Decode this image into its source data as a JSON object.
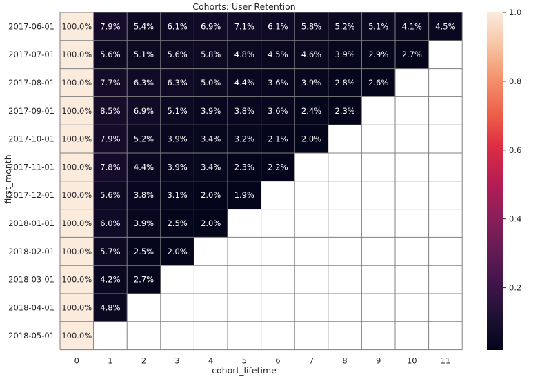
{
  "chart_data": {
    "type": "heatmap",
    "title": "Cohorts: User Retention",
    "xlabel": "cohort_lifetime",
    "ylabel": "first_month",
    "columns": [
      "0",
      "1",
      "2",
      "3",
      "4",
      "5",
      "6",
      "7",
      "8",
      "9",
      "10",
      "11"
    ],
    "rows": [
      "2017-06-01",
      "2017-07-01",
      "2017-08-01",
      "2017-09-01",
      "2017-10-01",
      "2017-11-01",
      "2017-12-01",
      "2018-01-01",
      "2018-02-01",
      "2018-03-01",
      "2018-04-01",
      "2018-05-01"
    ],
    "values": [
      [
        1.0,
        0.079,
        0.054,
        0.061,
        0.069,
        0.071,
        0.061,
        0.058,
        0.052,
        0.051,
        0.041,
        0.045
      ],
      [
        1.0,
        0.056,
        0.051,
        0.056,
        0.058,
        0.048,
        0.045,
        0.046,
        0.039,
        0.029,
        0.027,
        null
      ],
      [
        1.0,
        0.077,
        0.063,
        0.063,
        0.05,
        0.044,
        0.036,
        0.039,
        0.028,
        0.026,
        null,
        null
      ],
      [
        1.0,
        0.085,
        0.069,
        0.051,
        0.039,
        0.038,
        0.036,
        0.024,
        0.023,
        null,
        null,
        null
      ],
      [
        1.0,
        0.079,
        0.052,
        0.039,
        0.034,
        0.032,
        0.021,
        0.02,
        null,
        null,
        null,
        null
      ],
      [
        1.0,
        0.078,
        0.044,
        0.039,
        0.034,
        0.023,
        0.022,
        null,
        null,
        null,
        null,
        null
      ],
      [
        1.0,
        0.056,
        0.038,
        0.031,
        0.02,
        0.019,
        null,
        null,
        null,
        null,
        null,
        null
      ],
      [
        1.0,
        0.06,
        0.039,
        0.025,
        0.02,
        null,
        null,
        null,
        null,
        null,
        null,
        null
      ],
      [
        1.0,
        0.057,
        0.025,
        0.02,
        null,
        null,
        null,
        null,
        null,
        null,
        null,
        null
      ],
      [
        1.0,
        0.042,
        0.027,
        null,
        null,
        null,
        null,
        null,
        null,
        null,
        null,
        null
      ],
      [
        1.0,
        0.048,
        null,
        null,
        null,
        null,
        null,
        null,
        null,
        null,
        null,
        null
      ],
      [
        1.0,
        null,
        null,
        null,
        null,
        null,
        null,
        null,
        null,
        null,
        null,
        null
      ]
    ],
    "annotations": [
      [
        "100.0%",
        "7.9%",
        "5.4%",
        "6.1%",
        "6.9%",
        "7.1%",
        "6.1%",
        "5.8%",
        "5.2%",
        "5.1%",
        "4.1%",
        "4.5%"
      ],
      [
        "100.0%",
        "5.6%",
        "5.1%",
        "5.6%",
        "5.8%",
        "4.8%",
        "4.5%",
        "4.6%",
        "3.9%",
        "2.9%",
        "2.7%",
        null
      ],
      [
        "100.0%",
        "7.7%",
        "6.3%",
        "6.3%",
        "5.0%",
        "4.4%",
        "3.6%",
        "3.9%",
        "2.8%",
        "2.6%",
        null,
        null
      ],
      [
        "100.0%",
        "8.5%",
        "6.9%",
        "5.1%",
        "3.9%",
        "3.8%",
        "3.6%",
        "2.4%",
        "2.3%",
        null,
        null,
        null
      ],
      [
        "100.0%",
        "7.9%",
        "5.2%",
        "3.9%",
        "3.4%",
        "3.2%",
        "2.1%",
        "2.0%",
        null,
        null,
        null,
        null
      ],
      [
        "100.0%",
        "7.8%",
        "4.4%",
        "3.9%",
        "3.4%",
        "2.3%",
        "2.2%",
        null,
        null,
        null,
        null,
        null
      ],
      [
        "100.0%",
        "5.6%",
        "3.8%",
        "3.1%",
        "2.0%",
        "1.9%",
        null,
        null,
        null,
        null,
        null,
        null
      ],
      [
        "100.0%",
        "6.0%",
        "3.9%",
        "2.5%",
        "2.0%",
        null,
        null,
        null,
        null,
        null,
        null,
        null
      ],
      [
        "100.0%",
        "5.7%",
        "2.5%",
        "2.0%",
        null,
        null,
        null,
        null,
        null,
        null,
        null,
        null
      ],
      [
        "100.0%",
        "4.2%",
        "2.7%",
        null,
        null,
        null,
        null,
        null,
        null,
        null,
        null,
        null
      ],
      [
        "100.0%",
        "4.8%",
        null,
        null,
        null,
        null,
        null,
        null,
        null,
        null,
        null,
        null
      ],
      [
        "100.0%",
        null,
        null,
        null,
        null,
        null,
        null,
        null,
        null,
        null,
        null,
        null
      ]
    ],
    "colorbar": {
      "ticks": [
        "0.2",
        "0.4",
        "0.6",
        "0.8",
        "1.0"
      ],
      "tick_values": [
        0.2,
        0.4,
        0.6,
        0.8,
        1.0
      ],
      "vmin": 0.019,
      "vmax": 1.0,
      "colormap": "rocket"
    },
    "grid_line_color": "#808080",
    "empty_cell_color": "#ffffff"
  }
}
